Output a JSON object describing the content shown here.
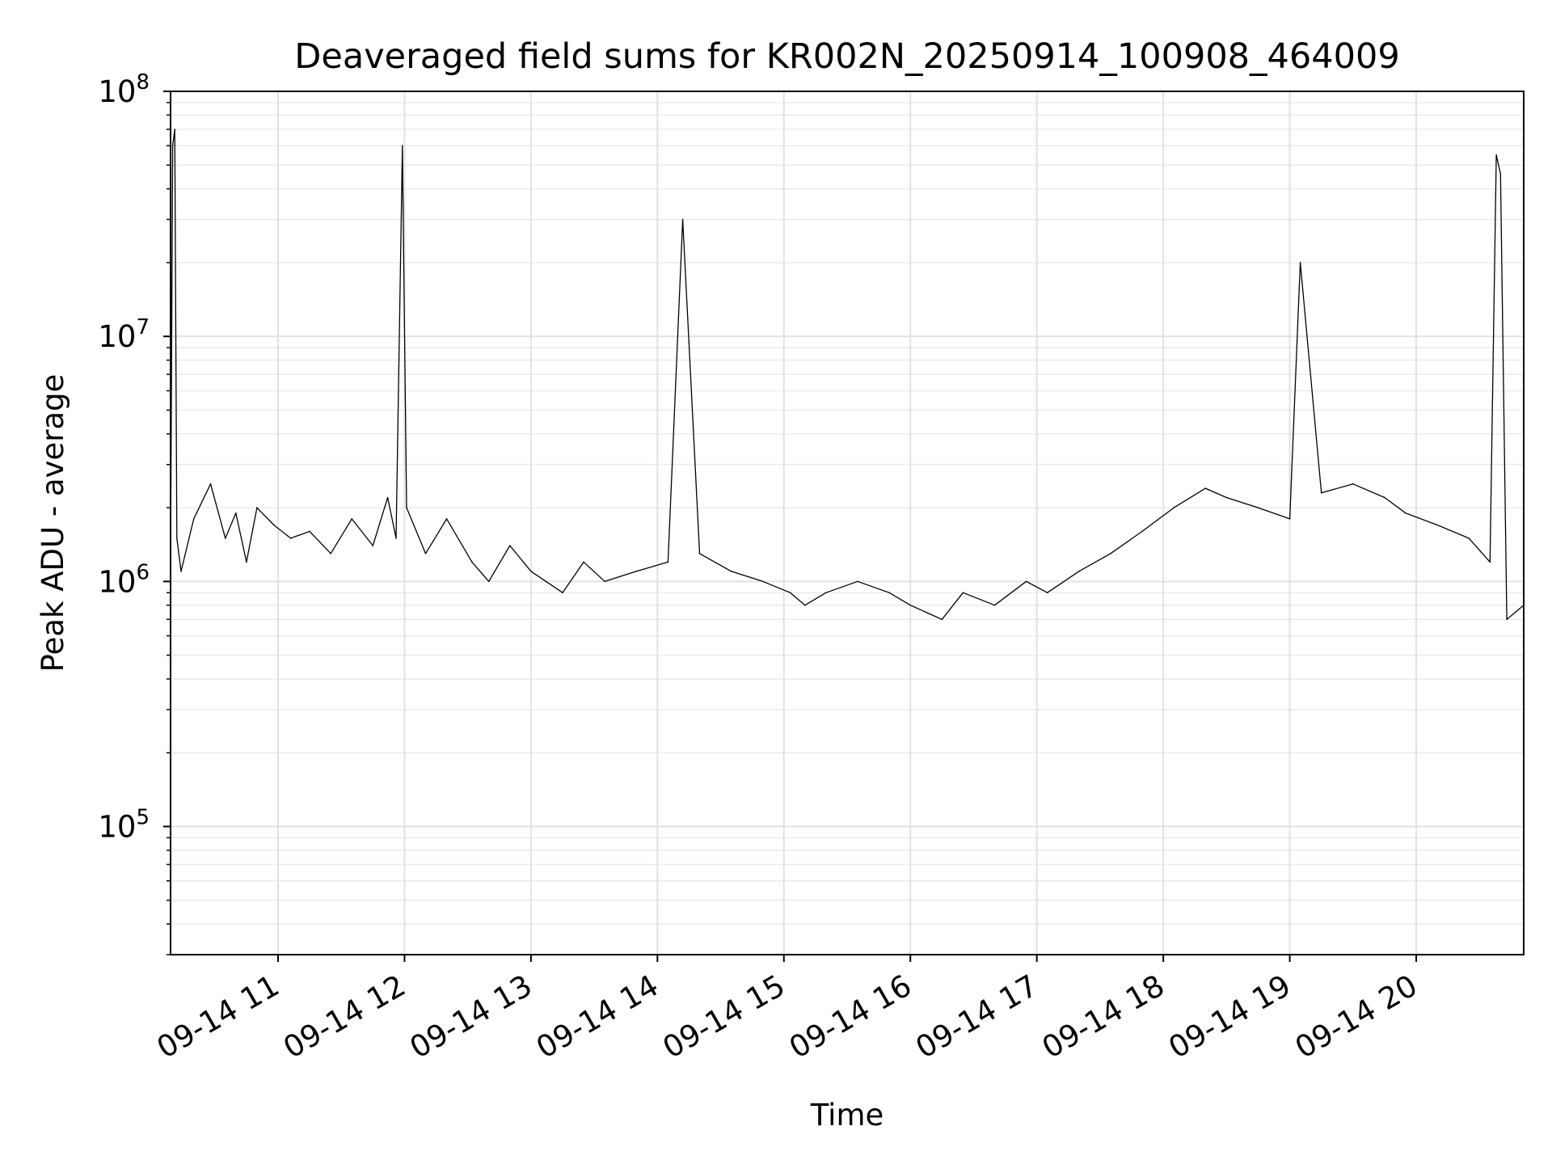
{
  "chart_data": {
    "type": "line",
    "title": "Deaveraged field sums for KR002N_20250914_100908_464009",
    "xlabel": "Time",
    "ylabel": "Peak ADU - average",
    "yscale": "log",
    "ylim": [
      30000,
      100000000
    ],
    "xlim": [
      "09-14 10:09",
      "09-14 20:51"
    ],
    "grid": true,
    "line_color": "#000000",
    "x_ticks": [
      {
        "label": "09-14 11",
        "value": "09-14 11:00"
      },
      {
        "label": "09-14 12",
        "value": "09-14 12:00"
      },
      {
        "label": "09-14 13",
        "value": "09-14 13:00"
      },
      {
        "label": "09-14 14",
        "value": "09-14 14:00"
      },
      {
        "label": "09-14 15",
        "value": "09-14 15:00"
      },
      {
        "label": "09-14 16",
        "value": "09-14 16:00"
      },
      {
        "label": "09-14 17",
        "value": "09-14 17:00"
      },
      {
        "label": "09-14 18",
        "value": "09-14 18:00"
      },
      {
        "label": "09-14 19",
        "value": "09-14 19:00"
      },
      {
        "label": "09-14 20",
        "value": "09-14 20:00"
      }
    ],
    "y_ticks": [
      {
        "base": "10",
        "exp": "5",
        "value": 100000
      },
      {
        "base": "10",
        "exp": "6",
        "value": 1000000
      },
      {
        "base": "10",
        "exp": "7",
        "value": 10000000
      },
      {
        "base": "10",
        "exp": "8",
        "value": 100000000
      }
    ],
    "series": [
      {
        "x": [
          "09-14 10:09",
          "09-14 10:10",
          "09-14 10:11",
          "09-14 10:12",
          "09-14 10:14",
          "09-14 10:20",
          "09-14 10:28",
          "09-14 10:35",
          "09-14 10:40",
          "09-14 10:45",
          "09-14 10:50",
          "09-14 10:58",
          "09-14 11:06",
          "09-14 11:15",
          "09-14 11:25",
          "09-14 11:35",
          "09-14 11:45",
          "09-14 11:52",
          "09-14 11:56",
          "09-14 11:59",
          "09-14 12:01",
          "09-14 12:10",
          "09-14 12:20",
          "09-14 12:32",
          "09-14 12:40",
          "09-14 12:50",
          "09-14 13:00",
          "09-14 13:15",
          "09-14 13:25",
          "09-14 13:35",
          "09-14 13:50",
          "09-14 14:05",
          "09-14 14:12",
          "09-14 14:20",
          "09-14 14:35",
          "09-14 14:50",
          "09-14 15:03",
          "09-14 15:10",
          "09-14 15:20",
          "09-14 15:35",
          "09-14 15:50",
          "09-14 16:00",
          "09-14 16:15",
          "09-14 16:25",
          "09-14 16:40",
          "09-14 16:55",
          "09-14 17:05",
          "09-14 17:20",
          "09-14 17:35",
          "09-14 17:50",
          "09-14 18:05",
          "09-14 18:20",
          "09-14 18:30",
          "09-14 18:45",
          "09-14 19:00",
          "09-14 19:05",
          "09-14 19:15",
          "09-14 19:30",
          "09-14 19:45",
          "09-14 19:55",
          "09-14 20:10",
          "09-14 20:25",
          "09-14 20:35",
          "09-14 20:38",
          "09-14 20:40",
          "09-14 20:43",
          "09-14 20:51"
        ],
        "y": [
          1200000,
          60000000,
          70000000,
          1500000,
          1100000,
          1800000,
          2500000,
          1500000,
          1900000,
          1200000,
          2000000,
          1700000,
          1500000,
          1600000,
          1300000,
          1800000,
          1400000,
          2200000,
          1500000,
          60000000,
          2000000,
          1300000,
          1800000,
          1200000,
          1000000,
          1400000,
          1100000,
          900000,
          1200000,
          1000000,
          1100000,
          1200000,
          30000000,
          1300000,
          1100000,
          1000000,
          900000,
          800000,
          900000,
          1000000,
          900000,
          800000,
          700000,
          900000,
          800000,
          1000000,
          900000,
          1100000,
          1300000,
          1600000,
          2000000,
          2400000,
          2200000,
          2000000,
          1800000,
          20000000,
          2300000,
          2500000,
          2200000,
          1900000,
          1700000,
          1500000,
          1200000,
          55000000,
          46000000,
          700000,
          800000
        ]
      }
    ]
  }
}
